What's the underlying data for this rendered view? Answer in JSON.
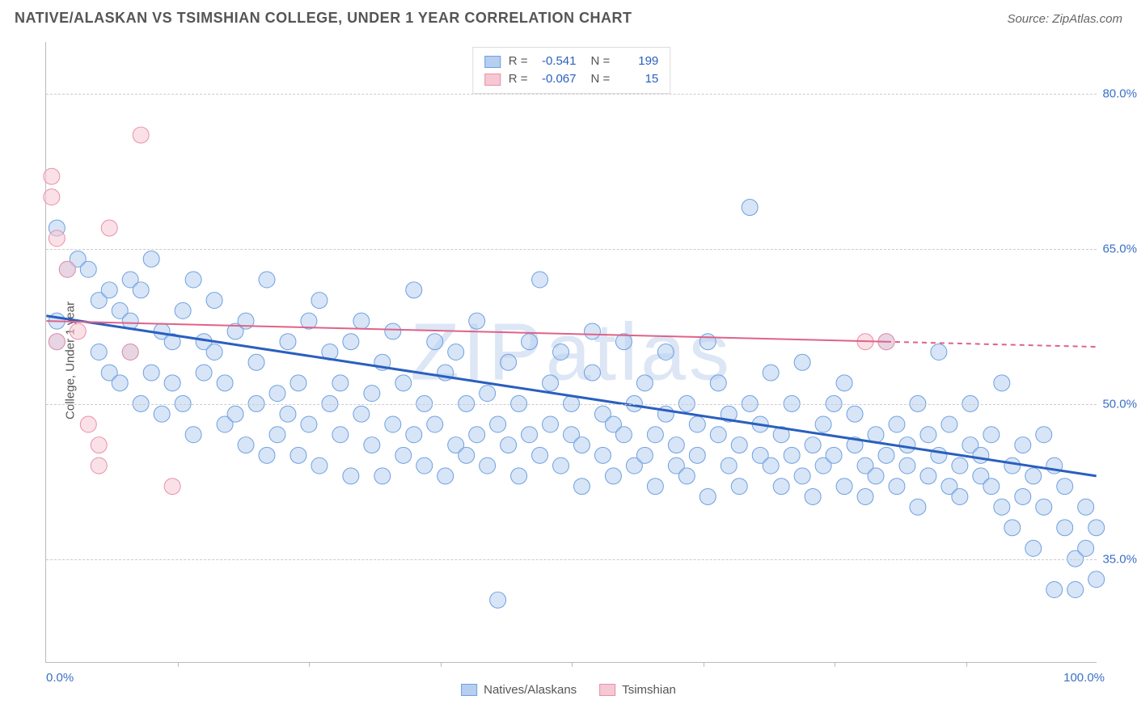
{
  "title": "NATIVE/ALASKAN VS TSIMSHIAN COLLEGE, UNDER 1 YEAR CORRELATION CHART",
  "source": "Source: ZipAtlas.com",
  "watermark": "ZIPatlas",
  "y_axis_label": "College, Under 1 year",
  "chart": {
    "type": "scatter",
    "background_color": "#ffffff",
    "grid_color": "#cccccc",
    "axis_color": "#bbbbbb",
    "xlim": [
      0,
      100
    ],
    "ylim": [
      25,
      85
    ],
    "x_ticks_major": [
      0,
      100
    ],
    "x_tick_labels": [
      "0.0%",
      "100.0%"
    ],
    "x_ticks_minor": [
      12.5,
      25,
      37.5,
      50,
      62.5,
      75,
      87.5
    ],
    "y_ticks": [
      35,
      50,
      65,
      80
    ],
    "y_tick_labels": [
      "35.0%",
      "50.0%",
      "65.0%",
      "80.0%"
    ],
    "tick_label_color": "#3b6fc9",
    "tick_label_fontsize": 15,
    "marker_radius": 10,
    "marker_opacity": 0.55,
    "series": [
      {
        "name": "Natives/Alaskans",
        "color_fill": "#b6cff0",
        "color_stroke": "#6ea0e0",
        "r_value": "-0.541",
        "n_value": "199",
        "trend": {
          "x1": 0,
          "y1": 58.5,
          "x2": 100,
          "y2": 43,
          "color": "#2a5fbf",
          "width": 3
        },
        "points": [
          [
            1,
            67
          ],
          [
            1,
            56
          ],
          [
            1,
            58
          ],
          [
            2,
            63
          ],
          [
            3,
            64
          ],
          [
            4,
            63
          ],
          [
            5,
            60
          ],
          [
            5,
            55
          ],
          [
            6,
            61
          ],
          [
            6,
            53
          ],
          [
            7,
            59
          ],
          [
            7,
            52
          ],
          [
            8,
            62
          ],
          [
            8,
            55
          ],
          [
            8,
            58
          ],
          [
            9,
            50
          ],
          [
            9,
            61
          ],
          [
            10,
            53
          ],
          [
            10,
            64
          ],
          [
            11,
            57
          ],
          [
            11,
            49
          ],
          [
            12,
            56
          ],
          [
            12,
            52
          ],
          [
            13,
            50
          ],
          [
            13,
            59
          ],
          [
            14,
            62
          ],
          [
            14,
            47
          ],
          [
            15,
            53
          ],
          [
            15,
            56
          ],
          [
            16,
            55
          ],
          [
            16,
            60
          ],
          [
            17,
            48
          ],
          [
            17,
            52
          ],
          [
            18,
            49
          ],
          [
            18,
            57
          ],
          [
            19,
            46
          ],
          [
            19,
            58
          ],
          [
            20,
            50
          ],
          [
            20,
            54
          ],
          [
            21,
            62
          ],
          [
            21,
            45
          ],
          [
            22,
            51
          ],
          [
            22,
            47
          ],
          [
            23,
            56
          ],
          [
            23,
            49
          ],
          [
            24,
            52
          ],
          [
            24,
            45
          ],
          [
            25,
            58
          ],
          [
            25,
            48
          ],
          [
            26,
            60
          ],
          [
            26,
            44
          ],
          [
            27,
            50
          ],
          [
            27,
            55
          ],
          [
            28,
            47
          ],
          [
            28,
            52
          ],
          [
            29,
            56
          ],
          [
            29,
            43
          ],
          [
            30,
            49
          ],
          [
            30,
            58
          ],
          [
            31,
            51
          ],
          [
            31,
            46
          ],
          [
            32,
            54
          ],
          [
            32,
            43
          ],
          [
            33,
            48
          ],
          [
            33,
            57
          ],
          [
            34,
            45
          ],
          [
            34,
            52
          ],
          [
            35,
            61
          ],
          [
            35,
            47
          ],
          [
            36,
            50
          ],
          [
            36,
            44
          ],
          [
            37,
            56
          ],
          [
            37,
            48
          ],
          [
            38,
            43
          ],
          [
            38,
            53
          ],
          [
            39,
            46
          ],
          [
            39,
            55
          ],
          [
            40,
            50
          ],
          [
            40,
            45
          ],
          [
            41,
            58
          ],
          [
            41,
            47
          ],
          [
            42,
            51
          ],
          [
            42,
            44
          ],
          [
            43,
            48
          ],
          [
            43,
            31
          ],
          [
            44,
            54
          ],
          [
            44,
            46
          ],
          [
            45,
            50
          ],
          [
            45,
            43
          ],
          [
            46,
            56
          ],
          [
            46,
            47
          ],
          [
            47,
            62
          ],
          [
            47,
            45
          ],
          [
            48,
            52
          ],
          [
            48,
            48
          ],
          [
            49,
            44
          ],
          [
            49,
            55
          ],
          [
            50,
            47
          ],
          [
            50,
            50
          ],
          [
            51,
            46
          ],
          [
            51,
            42
          ],
          [
            52,
            53
          ],
          [
            52,
            57
          ],
          [
            53,
            45
          ],
          [
            53,
            49
          ],
          [
            54,
            48
          ],
          [
            54,
            43
          ],
          [
            55,
            56
          ],
          [
            55,
            47
          ],
          [
            56,
            50
          ],
          [
            56,
            44
          ],
          [
            57,
            45
          ],
          [
            57,
            52
          ],
          [
            58,
            47
          ],
          [
            58,
            42
          ],
          [
            59,
            49
          ],
          [
            59,
            55
          ],
          [
            60,
            46
          ],
          [
            60,
            44
          ],
          [
            61,
            50
          ],
          [
            61,
            43
          ],
          [
            62,
            48
          ],
          [
            62,
            45
          ],
          [
            63,
            56
          ],
          [
            63,
            41
          ],
          [
            64,
            47
          ],
          [
            64,
            52
          ],
          [
            65,
            44
          ],
          [
            65,
            49
          ],
          [
            66,
            46
          ],
          [
            66,
            42
          ],
          [
            67,
            50
          ],
          [
            67,
            69
          ],
          [
            68,
            45
          ],
          [
            68,
            48
          ],
          [
            69,
            44
          ],
          [
            69,
            53
          ],
          [
            70,
            47
          ],
          [
            70,
            42
          ],
          [
            71,
            45
          ],
          [
            71,
            50
          ],
          [
            72,
            54
          ],
          [
            72,
            43
          ],
          [
            73,
            46
          ],
          [
            73,
            41
          ],
          [
            74,
            48
          ],
          [
            74,
            44
          ],
          [
            75,
            50
          ],
          [
            75,
            45
          ],
          [
            76,
            42
          ],
          [
            76,
            52
          ],
          [
            77,
            46
          ],
          [
            77,
            49
          ],
          [
            78,
            44
          ],
          [
            78,
            41
          ],
          [
            79,
            47
          ],
          [
            79,
            43
          ],
          [
            80,
            56
          ],
          [
            80,
            45
          ],
          [
            81,
            42
          ],
          [
            81,
            48
          ],
          [
            82,
            46
          ],
          [
            82,
            44
          ],
          [
            83,
            50
          ],
          [
            83,
            40
          ],
          [
            84,
            47
          ],
          [
            84,
            43
          ],
          [
            85,
            45
          ],
          [
            85,
            55
          ],
          [
            86,
            42
          ],
          [
            86,
            48
          ],
          [
            87,
            44
          ],
          [
            87,
            41
          ],
          [
            88,
            46
          ],
          [
            88,
            50
          ],
          [
            89,
            43
          ],
          [
            89,
            45
          ],
          [
            90,
            42
          ],
          [
            90,
            47
          ],
          [
            91,
            52
          ],
          [
            91,
            40
          ],
          [
            92,
            44
          ],
          [
            92,
            38
          ],
          [
            93,
            46
          ],
          [
            93,
            41
          ],
          [
            94,
            43
          ],
          [
            94,
            36
          ],
          [
            95,
            40
          ],
          [
            95,
            47
          ],
          [
            96,
            32
          ],
          [
            96,
            44
          ],
          [
            97,
            38
          ],
          [
            97,
            42
          ],
          [
            98,
            35
          ],
          [
            98,
            32
          ],
          [
            99,
            40
          ],
          [
            99,
            36
          ],
          [
            100,
            33
          ],
          [
            100,
            38
          ]
        ]
      },
      {
        "name": "Tsimshian",
        "color_fill": "#f5c8d4",
        "color_stroke": "#e98fa8",
        "r_value": "-0.067",
        "n_value": "15",
        "trend": {
          "x1": 0,
          "y1": 58,
          "x2": 80,
          "y2": 56,
          "x2_dash": 100,
          "y2_dash": 55.5,
          "color": "#e06287",
          "width": 2
        },
        "points": [
          [
            0.5,
            72
          ],
          [
            0.5,
            70
          ],
          [
            1,
            66
          ],
          [
            1,
            56
          ],
          [
            2,
            63
          ],
          [
            3,
            57
          ],
          [
            4,
            48
          ],
          [
            5,
            46
          ],
          [
            5,
            44
          ],
          [
            6,
            67
          ],
          [
            8,
            55
          ],
          [
            9,
            76
          ],
          [
            12,
            42
          ],
          [
            78,
            56
          ],
          [
            80,
            56
          ]
        ]
      }
    ]
  },
  "legend_top": {
    "r_label": "R =",
    "n_label": "N ="
  },
  "legend_bottom": {
    "items": [
      "Natives/Alaskans",
      "Tsimshian"
    ]
  }
}
